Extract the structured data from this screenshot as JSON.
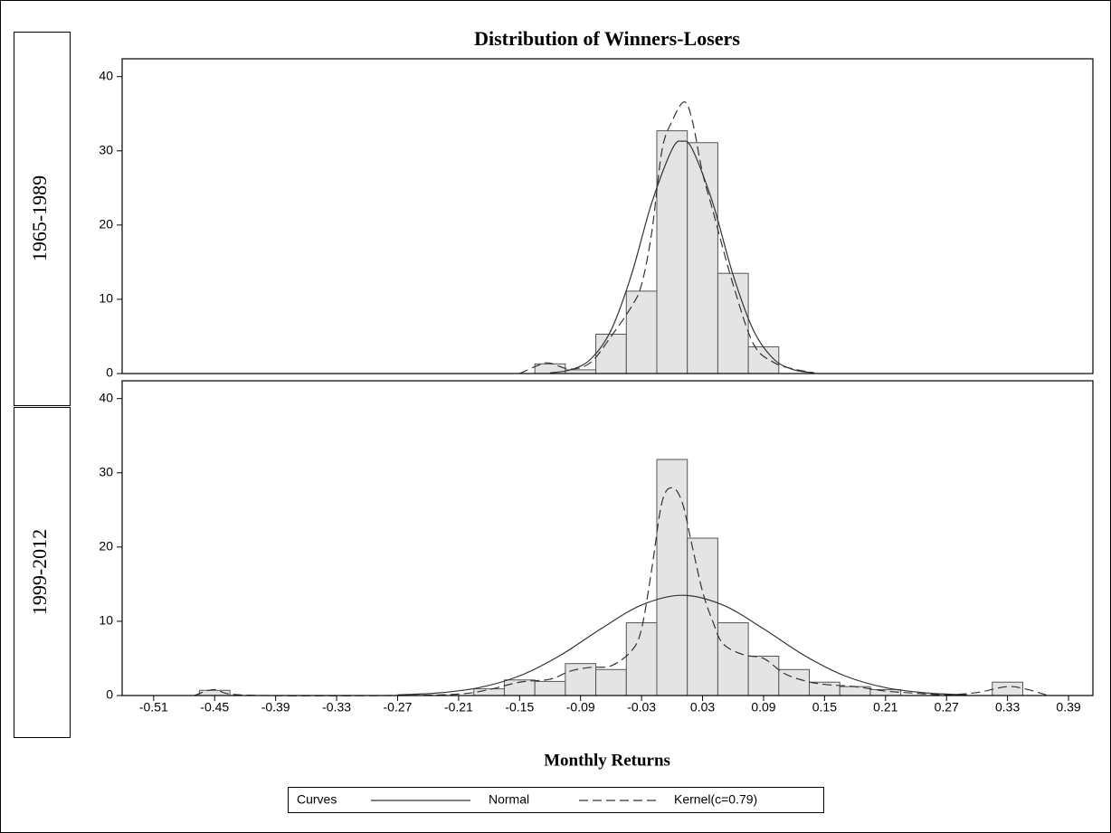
{
  "title": "Distribution of Winners-Losers",
  "xlabel": "Monthly Returns",
  "legend_title": "Curves",
  "chart_data": [
    {
      "type": "histogram",
      "row_label": "1965-1989",
      "color": "#e4e4e4",
      "bins": [
        -0.135,
        -0.105,
        -0.075,
        -0.045,
        -0.015,
        0.015,
        0.045,
        0.075,
        0.105
      ],
      "values": [
        1.3,
        0.5,
        5.3,
        11.1,
        32.7,
        31.1,
        13.5,
        3.6
      ],
      "xlim": [
        -0.541,
        0.414
      ],
      "ylim": [
        0,
        42.4
      ],
      "yticks": [
        0,
        10,
        20,
        30,
        40
      ],
      "series": [
        {
          "name": "Normal",
          "line_style": "solid",
          "color": "#333333",
          "x": [
            -0.12,
            -0.1,
            -0.08,
            -0.06,
            -0.04,
            -0.02,
            0.0,
            0.01,
            0.02,
            0.04,
            0.06,
            0.08,
            0.1,
            0.12,
            0.14
          ],
          "values": [
            0.1,
            0.49,
            1.95,
            5.84,
            13.29,
            23.0,
            30.2,
            31.3,
            30.2,
            23.0,
            13.29,
            5.84,
            1.95,
            0.49,
            0.1
          ]
        },
        {
          "name": "Kernel(c=0.79)",
          "line_style": "dashed",
          "color": "#333333",
          "x": [
            -0.15,
            -0.13,
            -0.12,
            -0.1,
            -0.08,
            -0.06,
            -0.04,
            -0.03,
            -0.02,
            -0.01,
            0.0,
            0.012,
            0.02,
            0.03,
            0.04,
            0.06,
            0.08,
            0.1,
            0.12,
            0.14
          ],
          "values": [
            0,
            1.2,
            1.4,
            0.6,
            1.5,
            5,
            9,
            12,
            19,
            30,
            34,
            36.6,
            34,
            27,
            22,
            12,
            4,
            1.5,
            0.6,
            0.1
          ]
        }
      ]
    },
    {
      "type": "histogram",
      "row_label": "1999-2012",
      "color": "#e4e4e4",
      "bins": [
        -0.465,
        -0.435,
        -0.405,
        -0.375,
        -0.345,
        -0.315,
        -0.285,
        -0.255,
        -0.225,
        -0.195,
        -0.165,
        -0.135,
        -0.105,
        -0.075,
        -0.045,
        -0.015,
        0.015,
        0.045,
        0.075,
        0.105,
        0.135,
        0.165,
        0.195,
        0.225,
        0.255,
        0.285,
        0.315,
        0.345
      ],
      "values": [
        0.7,
        0,
        0,
        0,
        0,
        0,
        0,
        0,
        0,
        0.9,
        2.1,
        1.9,
        4.3,
        3.5,
        9.8,
        31.8,
        21.2,
        9.8,
        5.3,
        3.5,
        1.8,
        1.2,
        0.8,
        0,
        0,
        0,
        1.8
      ],
      "xlim": [
        -0.541,
        0.414
      ],
      "ylim": [
        0,
        42.4
      ],
      "yticks": [
        0,
        10,
        20,
        30,
        40
      ],
      "xticks": [
        -0.51,
        -0.45,
        -0.39,
        -0.33,
        -0.27,
        -0.21,
        -0.15,
        -0.09,
        -0.03,
        0.03,
        0.09,
        0.15,
        0.21,
        0.27,
        0.33,
        0.39
      ],
      "series": [
        {
          "line_style": "solid",
          "color": "#333333",
          "x": [
            -0.27,
            -0.23,
            -0.19,
            -0.15,
            -0.11,
            -0.07,
            -0.03,
            0.01,
            0.05,
            0.09,
            0.13,
            0.17,
            0.21,
            0.25,
            0.29
          ],
          "values": [
            0.09,
            0.35,
            1.06,
            2.65,
            5.41,
            8.99,
            12.19,
            13.5,
            12.19,
            8.99,
            5.41,
            2.65,
            1.06,
            0.35,
            0.09
          ]
        },
        {
          "line_style": "dashed",
          "color": "#333333",
          "x": [
            -0.47,
            -0.45,
            -0.42,
            -0.27,
            -0.21,
            -0.18,
            -0.15,
            -0.12,
            -0.1,
            -0.08,
            -0.06,
            -0.04,
            -0.03,
            -0.02,
            -0.01,
            0.0,
            0.01,
            0.02,
            0.03,
            0.04,
            0.05,
            0.07,
            0.09,
            0.11,
            0.13,
            0.15,
            0.18,
            0.21,
            0.24,
            0.27,
            0.3,
            0.33,
            0.35,
            0.37
          ],
          "values": [
            0,
            0.8,
            0.05,
            0,
            0.2,
            0.8,
            1.8,
            2.2,
            3.3,
            3.8,
            4.0,
            6,
            9,
            17,
            26,
            28,
            26,
            20,
            14,
            10,
            7,
            5.5,
            5,
            3,
            2,
            1.5,
            1.2,
            0.6,
            0.3,
            0.1,
            0.4,
            1.2,
            0.8,
            0
          ]
        }
      ]
    }
  ]
}
